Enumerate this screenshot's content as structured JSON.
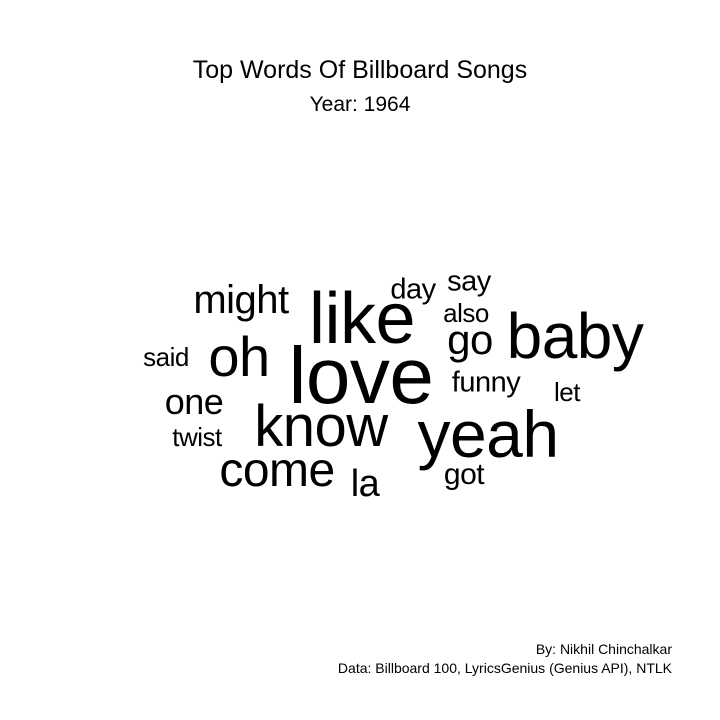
{
  "header": {
    "title": "Top Words Of Billboard Songs",
    "subtitle": "Year: 1964"
  },
  "cloud": {
    "words": {
      "love": "love",
      "like": "like",
      "baby": "baby",
      "yeah": "yeah",
      "know": "know",
      "oh": "oh",
      "come": "come",
      "might": "might",
      "one": "one",
      "go": "go",
      "la": "la",
      "said": "said",
      "day": "day",
      "say": "say",
      "also": "also",
      "funny": "funny",
      "let": "let",
      "twist": "twist",
      "got": "got"
    }
  },
  "footer": {
    "by": "By: Nikhil Chinchalkar",
    "source": "Data: Billboard 100, LyricsGenius (Genius API), NTLK"
  }
}
